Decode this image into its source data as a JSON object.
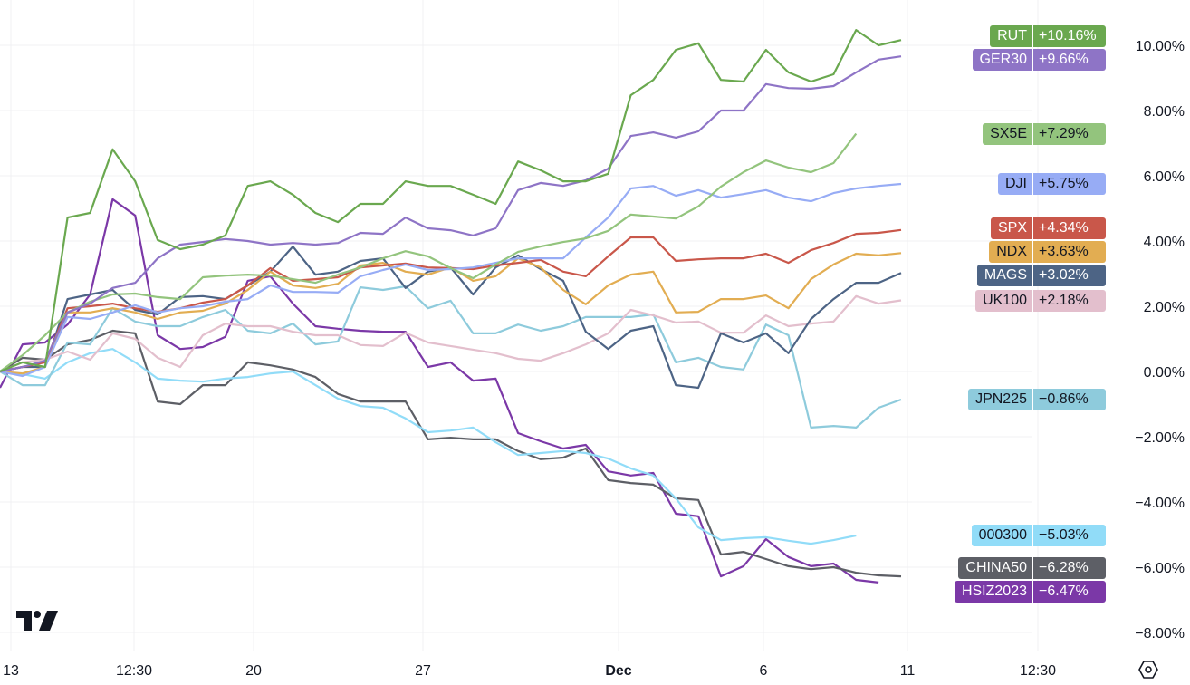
{
  "chart_data": {
    "type": "line",
    "title": "",
    "xlabel": "",
    "ylabel": "",
    "x_tick_labels": [
      "13",
      "12:30",
      "20",
      "27",
      "Dec",
      "6",
      "11",
      "12:30"
    ],
    "y_tick_labels": [
      "10.00%",
      "8.00%",
      "6.00%",
      "4.00%",
      "2.00%",
      "0.00%",
      "−2.00%",
      "−4.00%",
      "−6.00%",
      "−8.00%"
    ],
    "y_ticks": [
      10,
      8,
      6,
      4,
      2,
      0,
      -2,
      -4,
      -6,
      -8
    ],
    "ylim": [
      -9.2,
      11.4
    ],
    "y_unit": "%",
    "grid": true,
    "legend": "right-axis tags",
    "series": [
      {
        "name": "RUT",
        "last_label": "+10.16%",
        "color": "#6aa84f",
        "text_color": "#ffffff",
        "values": [
          0,
          0.28,
          0.14,
          4.72,
          4.86,
          6.81,
          5.83,
          4.03,
          3.75,
          3.89,
          4.17,
          5.69,
          5.83,
          5.42,
          4.86,
          4.58,
          5.14,
          5.14,
          5.83,
          5.69,
          5.69,
          5.42,
          5.14,
          6.44,
          6.17,
          5.83,
          5.83,
          6.06,
          8.47,
          8.94,
          9.86,
          10.06,
          8.94,
          8.89,
          9.86,
          9.17,
          8.89,
          9.11,
          10.47,
          10.0,
          10.16
        ]
      },
      {
        "name": "GER30",
        "last_label": "+9.66%",
        "color": "#8e74c6",
        "text_color": "#ffffff",
        "values": [
          0,
          0.14,
          0.33,
          1.81,
          2.08,
          2.56,
          2.72,
          3.47,
          3.89,
          3.97,
          4.06,
          4.0,
          3.89,
          3.94,
          3.89,
          3.94,
          4.25,
          4.22,
          4.72,
          4.39,
          4.33,
          4.17,
          4.39,
          5.56,
          5.78,
          5.69,
          5.86,
          6.22,
          7.22,
          7.33,
          7.17,
          7.36,
          8.0,
          8.0,
          8.81,
          8.69,
          8.67,
          8.75,
          9.17,
          9.56,
          9.66
        ]
      },
      {
        "name": "SX5E",
        "last_label": "+7.29%",
        "color": "#93c47d",
        "text_color": "#131722",
        "values": [
          0,
          0.5,
          1.11,
          1.81,
          2.14,
          2.36,
          2.39,
          2.28,
          2.22,
          2.89,
          2.94,
          2.97,
          2.94,
          2.83,
          2.72,
          2.97,
          3.19,
          3.47,
          3.69,
          3.53,
          3.17,
          2.86,
          3.28,
          3.67,
          3.83,
          3.97,
          4.08,
          4.31,
          4.81,
          4.75,
          4.69,
          5.06,
          5.67,
          6.11,
          6.47,
          6.25,
          6.11,
          6.39,
          7.29,
          null,
          null
        ]
      },
      {
        "name": "DJI",
        "last_label": "+5.75%",
        "color": "#97acf5",
        "text_color": "#131722",
        "values": [
          0,
          -0.14,
          0.14,
          1.67,
          1.61,
          1.81,
          2.03,
          1.81,
          1.94,
          2.0,
          2.14,
          2.22,
          2.64,
          2.44,
          2.44,
          2.42,
          2.92,
          3.11,
          3.28,
          3.11,
          3.14,
          3.19,
          3.33,
          3.47,
          3.47,
          3.47,
          4.11,
          4.72,
          5.61,
          5.69,
          5.39,
          5.56,
          5.33,
          5.44,
          5.56,
          5.33,
          5.22,
          5.47,
          5.61,
          5.69,
          5.75
        ]
      },
      {
        "name": "SPX",
        "last_label": "+4.34%",
        "color": "#c9574a",
        "text_color": "#ffffff",
        "values": [
          0,
          0.14,
          0.28,
          1.94,
          2.0,
          2.08,
          1.94,
          1.83,
          1.94,
          2.11,
          2.22,
          2.64,
          3.17,
          2.78,
          2.83,
          2.89,
          3.19,
          3.25,
          3.31,
          3.19,
          3.17,
          3.14,
          3.25,
          3.33,
          3.42,
          3.06,
          2.92,
          3.53,
          4.11,
          4.11,
          3.39,
          3.44,
          3.47,
          3.47,
          3.61,
          3.33,
          3.72,
          3.94,
          4.22,
          4.25,
          4.34
        ]
      },
      {
        "name": "NDX",
        "last_label": "+3.63%",
        "color": "#e2ad52",
        "text_color": "#131722",
        "values": [
          0,
          -0.06,
          0.14,
          1.81,
          1.81,
          1.94,
          1.81,
          1.61,
          1.81,
          1.86,
          2.08,
          2.5,
          3.06,
          2.64,
          2.56,
          2.69,
          3.25,
          3.33,
          3.06,
          2.97,
          3.19,
          2.78,
          2.92,
          3.47,
          3.19,
          2.5,
          2.06,
          2.64,
          2.97,
          3.06,
          1.81,
          1.83,
          2.22,
          2.22,
          2.33,
          1.94,
          2.83,
          3.28,
          3.61,
          3.56,
          3.63
        ]
      },
      {
        "name": "MAGS",
        "last_label": "+3.02%",
        "color": "#4d6485",
        "text_color": "#ffffff",
        "values": [
          0,
          0.14,
          0.14,
          2.22,
          2.36,
          2.5,
          1.89,
          1.75,
          2.28,
          2.31,
          2.22,
          2.64,
          3.06,
          3.83,
          2.97,
          3.06,
          3.39,
          3.47,
          2.56,
          3.06,
          3.19,
          2.36,
          3.19,
          3.56,
          3.14,
          2.78,
          1.22,
          0.69,
          1.25,
          1.39,
          -0.42,
          -0.5,
          1.17,
          0.89,
          1.17,
          0.56,
          1.61,
          2.22,
          2.72,
          2.72,
          3.02
        ]
      },
      {
        "name": "UK100",
        "last_label": "+2.18%",
        "color": "#e3bfcd",
        "text_color": "#131722",
        "values": [
          0,
          0.28,
          0.36,
          0.61,
          0.36,
          1.17,
          1.0,
          0.42,
          0.14,
          1.11,
          1.47,
          1.39,
          1.39,
          1.22,
          1.11,
          1.11,
          0.81,
          0.78,
          1.19,
          0.89,
          0.78,
          0.67,
          0.56,
          0.39,
          0.33,
          0.56,
          0.83,
          1.17,
          1.89,
          1.72,
          1.5,
          1.53,
          1.19,
          1.19,
          1.72,
          1.39,
          1.47,
          1.53,
          2.31,
          2.08,
          2.18
        ]
      },
      {
        "name": "JPN225",
        "last_label": "−0.86%",
        "color": "#8ecbdc",
        "text_color": "#131722",
        "values": [
          0,
          -0.42,
          -0.42,
          0.89,
          0.83,
          1.94,
          1.53,
          1.39,
          1.39,
          1.67,
          1.89,
          1.25,
          1.17,
          1.47,
          0.83,
          0.92,
          2.58,
          2.5,
          2.61,
          1.94,
          2.17,
          1.17,
          1.17,
          1.44,
          1.25,
          1.39,
          1.67,
          1.67,
          1.67,
          1.75,
          0.28,
          0.42,
          0.14,
          0.06,
          1.44,
          1.11,
          -1.72,
          -1.67,
          -1.72,
          -1.11,
          -0.86
        ]
      },
      {
        "name": "000300",
        "last_label": "−5.03%",
        "color": "#91dcf8",
        "text_color": "#131722",
        "values": [
          0,
          -0.08,
          -0.22,
          0.28,
          0.56,
          0.69,
          0.28,
          -0.22,
          -0.28,
          -0.31,
          -0.22,
          -0.17,
          -0.06,
          0,
          -0.42,
          -0.83,
          -1.06,
          -1.11,
          -1.44,
          -1.86,
          -1.81,
          -1.72,
          -2.17,
          -2.56,
          -2.5,
          -2.44,
          -2.5,
          -2.67,
          -2.97,
          -3.19,
          -3.89,
          -4.78,
          -5.17,
          -5.11,
          -5.08,
          -5.19,
          -5.28,
          -5.17,
          -5.03,
          null,
          null
        ]
      },
      {
        "name": "CHINA50",
        "last_label": "−6.28%",
        "color": "#5d5f66",
        "text_color": "#ffffff",
        "values": [
          0,
          0.42,
          0.36,
          0.83,
          0.97,
          1.25,
          1.17,
          -0.92,
          -1.0,
          -0.42,
          -0.42,
          0.28,
          0.19,
          0.06,
          -0.17,
          -0.69,
          -0.92,
          -0.92,
          -0.92,
          -2.08,
          -2.03,
          -2.08,
          -2.08,
          -2.44,
          -2.69,
          -2.64,
          -2.36,
          -3.33,
          -3.42,
          -3.47,
          -3.89,
          -3.94,
          -5.61,
          -5.53,
          -5.75,
          -5.97,
          -6.06,
          -6.0,
          -6.17,
          -6.25,
          -6.28
        ]
      },
      {
        "name": "HSIZ2023",
        "last_label": "−6.47%",
        "color": "#7b38a7",
        "text_color": "#ffffff",
        "values": [
          -0.5,
          0.83,
          0.89,
          1.44,
          2.36,
          5.28,
          4.78,
          1.11,
          0.69,
          0.75,
          1.06,
          2.78,
          2.92,
          2.08,
          1.39,
          1.31,
          1.25,
          1.22,
          1.22,
          0.14,
          0.28,
          -0.28,
          -0.22,
          -1.89,
          -2.14,
          -2.36,
          -2.25,
          -3.06,
          -3.19,
          -3.11,
          -4.36,
          -4.44,
          -6.28,
          -5.97,
          -5.14,
          -5.69,
          -5.97,
          -5.89,
          -6.39,
          -6.47,
          null
        ]
      }
    ]
  },
  "icons": {
    "logo": "tradingview-logo",
    "settings": "settings-hexagon-icon"
  }
}
